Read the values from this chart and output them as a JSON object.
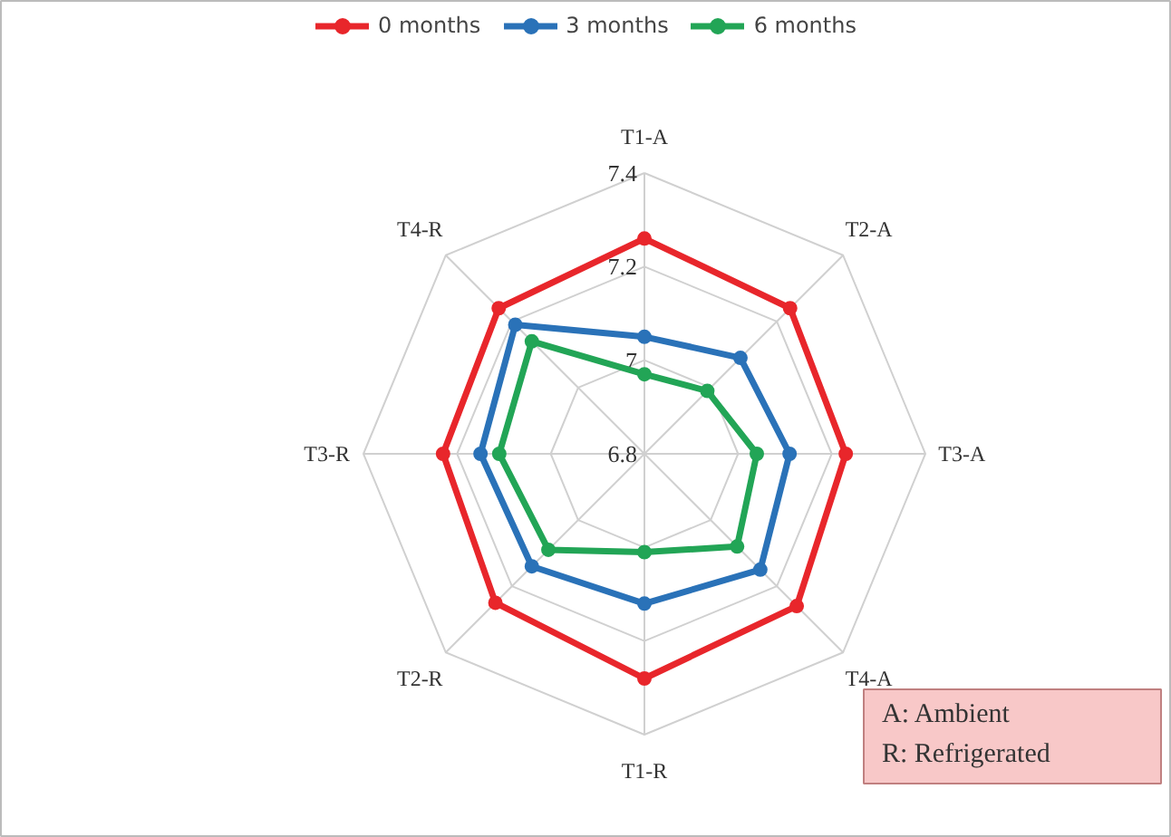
{
  "chart_data": {
    "type": "radar",
    "categories": [
      "T1-A",
      "T2-A",
      "T3-A",
      "T4-A",
      "T1-R",
      "T2-R",
      "T3-R",
      "T4-R"
    ],
    "ylim": [
      6.8,
      7.4
    ],
    "yticks": [
      6.8,
      7,
      7.2,
      7.4
    ],
    "legend": "top",
    "marker": "circle",
    "series": [
      {
        "name": "0 months",
        "color": "#e8262b",
        "values": [
          7.26,
          7.24,
          7.23,
          7.26,
          7.28,
          7.25,
          7.23,
          7.24
        ]
      },
      {
        "name": "3 months",
        "color": "#2a72b8",
        "values": [
          7.05,
          7.09,
          7.11,
          7.15,
          7.12,
          7.14,
          7.15,
          7.19
        ]
      },
      {
        "name": "6 months",
        "color": "#22a556",
        "values": [
          6.97,
          6.99,
          7.04,
          7.08,
          7.01,
          7.09,
          7.11,
          7.14
        ]
      }
    ],
    "annotations": [
      "A: Ambient",
      "R: Refrigerated"
    ]
  }
}
